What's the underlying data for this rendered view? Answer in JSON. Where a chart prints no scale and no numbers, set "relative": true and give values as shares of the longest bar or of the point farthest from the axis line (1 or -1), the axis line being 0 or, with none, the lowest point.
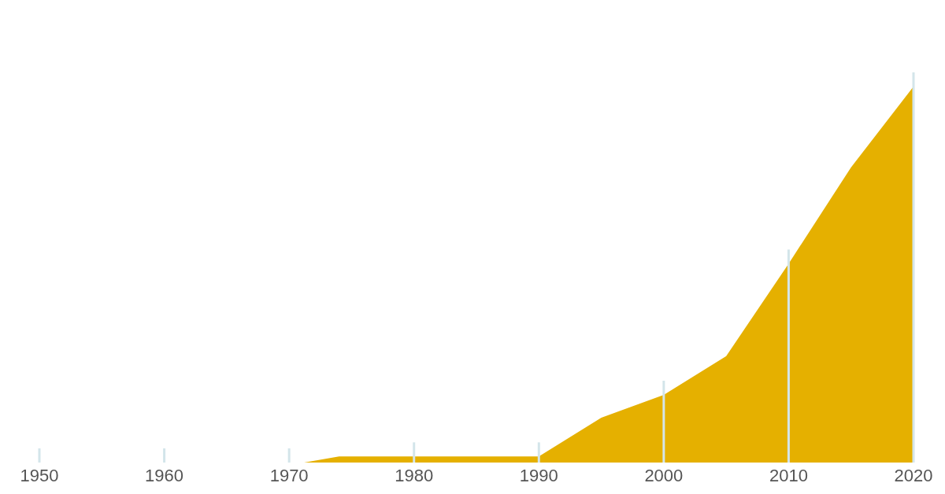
{
  "chart_data": {
    "type": "area",
    "relative": true,
    "x": [
      1971.2,
      1974,
      1990,
      1995,
      2000,
      2005,
      2010,
      2015,
      2020
    ],
    "series": [
      {
        "color": "#e5b000",
        "values": [
          0,
          0.016,
          0.016,
          0.119,
          0.18,
          0.283,
          0.529,
          0.785,
          1
        ]
      }
    ],
    "xlim": [
      1950,
      2020
    ],
    "xticks": [
      1950,
      1960,
      1970,
      1980,
      1990,
      2000,
      2010,
      2020
    ],
    "grid": false,
    "legend": false
  }
}
